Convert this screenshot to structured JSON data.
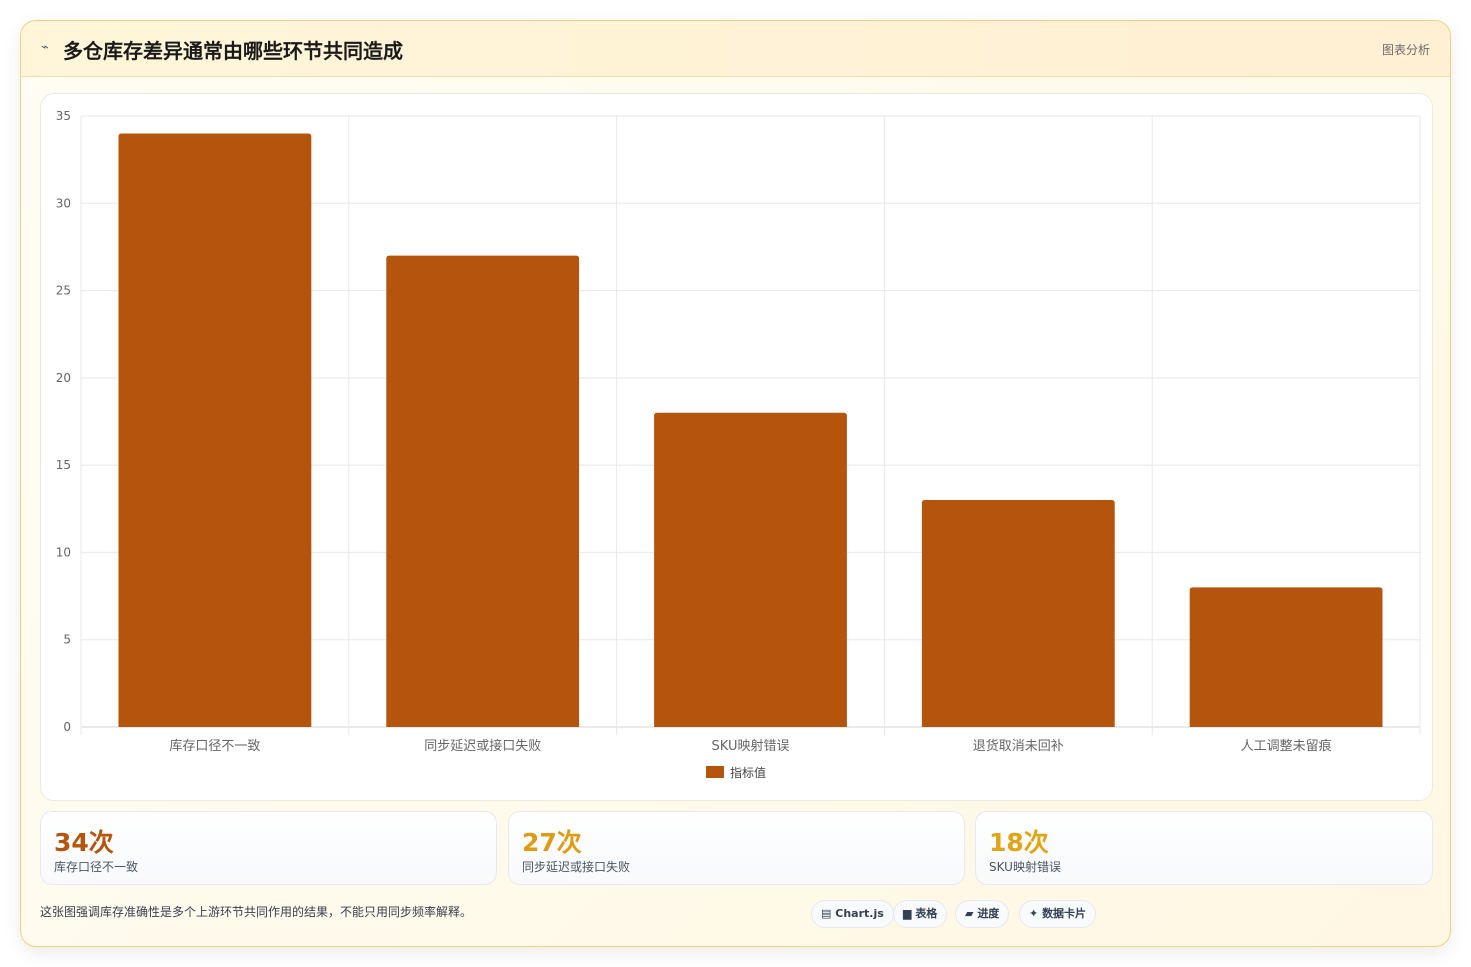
{
  "header": {
    "icon": "chart-line-icon",
    "title": "多仓库存差异通常由哪些环节共同造成",
    "tag": "图表分析"
  },
  "chart_data": {
    "type": "bar",
    "categories": [
      "库存口径不一致",
      "同步延迟或接口失败",
      "SKU映射错误",
      "退货取消未回补",
      "人工调整未留痕"
    ],
    "series": [
      {
        "name": "指标值",
        "values": [
          34,
          27,
          18,
          13,
          8
        ],
        "color": "#b5540c"
      }
    ],
    "ylim": [
      0,
      35
    ],
    "yticks": [
      0,
      5,
      10,
      15,
      20,
      25,
      30,
      35
    ],
    "grid": true,
    "legend": "bottom"
  },
  "stats": [
    {
      "value": "34次",
      "label": "库存口径不一致",
      "color": "#b5540c"
    },
    {
      "value": "27次",
      "label": "同步延迟或接口失败",
      "color": "#e09a14"
    },
    {
      "value": "18次",
      "label": "SKU映射错误",
      "color": "#e0a414"
    }
  ],
  "note": "这张图强调库存准确性是多个上游环节共同作用的结果，不能只用同步频率解释。",
  "pills": [
    {
      "icon": "chart-icon",
      "glyph": "▤",
      "label": "Chart.js"
    },
    {
      "icon": "table-icon",
      "glyph": "▆",
      "label": "表格"
    },
    {
      "icon": "progress-icon",
      "glyph": "▰",
      "label": "进度"
    },
    {
      "icon": "sparkle-icon",
      "glyph": "✦",
      "label": "数据卡片"
    }
  ]
}
